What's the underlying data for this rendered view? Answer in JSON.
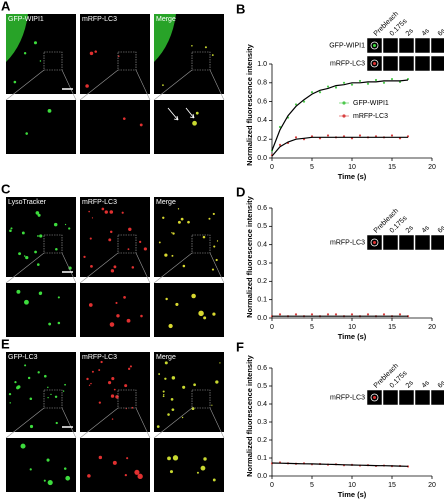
{
  "figure": {
    "panels": [
      {
        "letter": "A",
        "channels": [
          "GFP-WIPI1",
          "mRFP-LC3",
          "Merge"
        ]
      },
      {
        "letter": "C",
        "channels": [
          "LysoTracker",
          "mRFP-LC3",
          "Merge"
        ]
      },
      {
        "letter": "E",
        "channels": [
          "GFP-LC3",
          "mRFP-LC3",
          "Merge"
        ]
      }
    ]
  },
  "chart_data": [
    {
      "type": "line",
      "letter": "B",
      "ylabel": "Normalized fluorescence intensity",
      "xlabel": "Time (s)",
      "inset": {
        "timepoints": [
          "Prebleach",
          "0.175s",
          "2s",
          "4s",
          "6s"
        ],
        "rows": [
          "GFP-WIPI1",
          "mRFP-LC3"
        ]
      },
      "x": [
        0,
        1,
        2,
        3,
        4,
        5,
        6,
        7,
        8,
        9,
        10,
        11,
        12,
        13,
        14,
        15,
        16,
        17
      ],
      "series": [
        {
          "name": "GFP-WIPI1",
          "color": "#4cc94c",
          "values": [
            0.08,
            0.33,
            0.43,
            0.57,
            0.6,
            0.7,
            0.7,
            0.76,
            0.75,
            0.8,
            0.78,
            0.82,
            0.79,
            0.83,
            0.8,
            0.84,
            0.81,
            0.84
          ],
          "fit": [
            0.08,
            0.3,
            0.45,
            0.55,
            0.62,
            0.68,
            0.72,
            0.74,
            0.77,
            0.78,
            0.8,
            0.8,
            0.81,
            0.81,
            0.82,
            0.82,
            0.82,
            0.83
          ]
        },
        {
          "name": "mRFP-LC3",
          "color": "#d94040",
          "values": [
            0.03,
            0.14,
            0.16,
            0.22,
            0.2,
            0.23,
            0.21,
            0.24,
            0.22,
            0.23,
            0.21,
            0.24,
            0.22,
            0.23,
            0.22,
            0.24,
            0.21,
            0.23
          ],
          "fit": [
            0.02,
            0.12,
            0.17,
            0.2,
            0.21,
            0.22,
            0.22,
            0.22,
            0.22,
            0.22,
            0.22,
            0.22,
            0.22,
            0.22,
            0.22,
            0.22,
            0.22,
            0.22
          ]
        }
      ],
      "xlim": [
        0,
        20
      ],
      "xticks": [
        0,
        5,
        10,
        15,
        20
      ],
      "ylim": [
        0,
        1.0
      ],
      "yticks": [
        {
          "value": 0,
          "label": "0.0"
        },
        {
          "value": 0.2,
          "label": "0.2"
        },
        {
          "value": 0.4,
          "label": "0.4"
        },
        {
          "value": 0.6,
          "label": "0.6"
        },
        {
          "value": 0.8,
          "label": "0.8"
        },
        {
          "value": 1.0,
          "label": "1.0"
        }
      ],
      "fit_color": "#000000",
      "legend": "lower right"
    },
    {
      "type": "line",
      "letter": "D",
      "ylabel": "Normalized fluorescence intensity",
      "xlabel": "Time (s)",
      "inset": {
        "timepoints": [
          "Prebleach",
          "0.175s",
          "2s",
          "4s",
          "6s"
        ],
        "rows": [
          "mRFP-LC3"
        ]
      },
      "x": [
        0,
        1,
        2,
        3,
        4,
        5,
        6,
        7,
        8,
        9,
        10,
        11,
        12,
        13,
        14,
        15,
        16,
        17
      ],
      "series": [
        {
          "color": "#d94040",
          "values": [
            0.01,
            0.02,
            0.01,
            0.02,
            0.01,
            0.02,
            0.01,
            0.02,
            0.02,
            0.01,
            0.02,
            0.01,
            0.02,
            0.01,
            0.02,
            0.01,
            0.02,
            0.01
          ],
          "fit": [
            0.01,
            0.01,
            0.01,
            0.01,
            0.01,
            0.01,
            0.01,
            0.01,
            0.01,
            0.01,
            0.01,
            0.01,
            0.01,
            0.01,
            0.01,
            0.01,
            0.01,
            0.01
          ]
        }
      ],
      "xlim": [
        0,
        20
      ],
      "xticks": [
        0,
        5,
        10,
        15,
        20
      ],
      "ylim": [
        0,
        0.6
      ],
      "yticks": [
        {
          "value": 0,
          "label": "0.0"
        },
        0.1,
        0.2,
        0.3,
        0.4,
        0.5,
        0.6
      ],
      "fit_color": "#000000"
    },
    {
      "type": "line",
      "letter": "F",
      "ylabel": "Normalized fluorescence intensity",
      "xlabel": "Time (s)",
      "inset": {
        "timepoints": [
          "Prebleach",
          "0.175s",
          "2s",
          "4s",
          "6s"
        ],
        "rows": [
          "mRFP-LC3"
        ]
      },
      "x": [
        0,
        1,
        2,
        3,
        4,
        5,
        6,
        7,
        8,
        9,
        10,
        11,
        12,
        13,
        14,
        15,
        16,
        17
      ],
      "series": [
        {
          "color": "#d94040",
          "values": [
            0.07,
            0.075,
            0.07,
            0.068,
            0.07,
            0.065,
            0.067,
            0.063,
            0.065,
            0.06,
            0.062,
            0.058,
            0.06,
            0.056,
            0.058,
            0.055,
            0.056,
            0.053
          ],
          "fit": [
            0.072,
            0.071,
            0.07,
            0.069,
            0.068,
            0.067,
            0.066,
            0.065,
            0.064,
            0.062,
            0.061,
            0.06,
            0.059,
            0.058,
            0.057,
            0.056,
            0.055,
            0.054
          ]
        }
      ],
      "xlim": [
        0,
        20
      ],
      "xticks": [
        0,
        5,
        10,
        15,
        20
      ],
      "ylim": [
        0,
        0.6
      ],
      "yticks": [
        {
          "value": 0,
          "label": "0.0"
        },
        0.1,
        0.2,
        0.3,
        0.4,
        0.5,
        0.6
      ],
      "fit_color": "#000000"
    }
  ]
}
